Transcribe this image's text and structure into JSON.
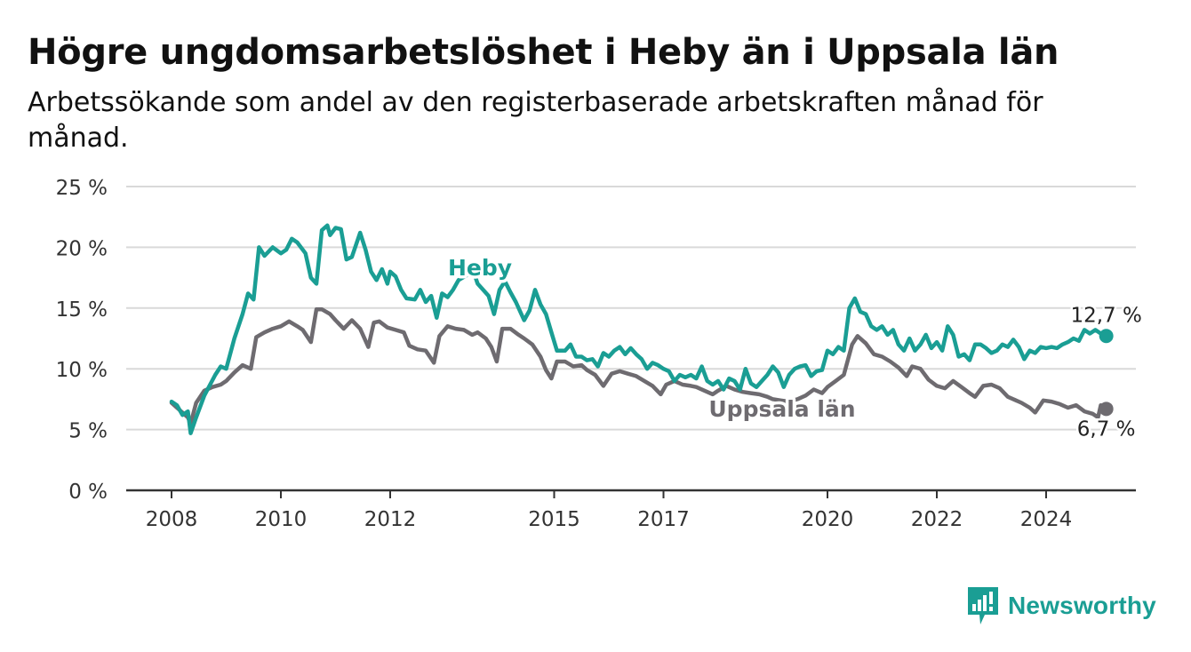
{
  "header": {
    "title": "Högre ungdomsarbetslöshet i Heby än i Uppsala län",
    "subtitle": "Arbetssökande som andel av den registerbaserade arbetskraften månad för månad."
  },
  "brand": {
    "name": "Newsworthy",
    "color": "#1a9e94",
    "icon": "newsworthy-logo-icon"
  },
  "chart_data": {
    "type": "line",
    "title": "Högre ungdomsarbetslöshet i Heby än i Uppsala län",
    "subtitle": "Arbetssökande som andel av den registerbaserade arbetskraften månad för månad.",
    "xlabel": "",
    "ylabel": "",
    "xlim": [
      2008,
      2026
    ],
    "ylim": [
      0,
      25
    ],
    "yticks": [
      0,
      5,
      10,
      15,
      20,
      25
    ],
    "ytick_labels": [
      "0 %",
      "5 %",
      "10 %",
      "15 %",
      "20 %",
      "25 %"
    ],
    "xtick_labels": [
      "2008",
      "2010",
      "2012",
      "2015",
      "2017",
      "2020",
      "2022",
      "2024"
    ],
    "xticks": [
      2008,
      2010,
      2012,
      2015,
      2017,
      2020,
      2022,
      2024
    ],
    "grid": true,
    "legend": "inline labels",
    "series": [
      {
        "name": "Heby",
        "color": "#1a9e94",
        "end_label": "12,7 %",
        "points": [
          [
            2008.0,
            7.3
          ],
          [
            2008.1,
            7.0
          ],
          [
            2008.2,
            6.2
          ],
          [
            2008.3,
            6.5
          ],
          [
            2008.35,
            4.7
          ],
          [
            2008.45,
            6.0
          ],
          [
            2008.6,
            7.8
          ],
          [
            2008.8,
            9.5
          ],
          [
            2008.9,
            10.2
          ],
          [
            2009.0,
            10.0
          ],
          [
            2009.15,
            12.5
          ],
          [
            2009.3,
            14.5
          ],
          [
            2009.4,
            16.2
          ],
          [
            2009.5,
            15.7
          ],
          [
            2009.6,
            20.0
          ],
          [
            2009.7,
            19.3
          ],
          [
            2009.85,
            20.0
          ],
          [
            2010.0,
            19.5
          ],
          [
            2010.1,
            19.8
          ],
          [
            2010.2,
            20.7
          ],
          [
            2010.3,
            20.4
          ],
          [
            2010.45,
            19.5
          ],
          [
            2010.55,
            17.5
          ],
          [
            2010.65,
            17.0
          ],
          [
            2010.75,
            21.4
          ],
          [
            2010.85,
            21.8
          ],
          [
            2010.9,
            21.0
          ],
          [
            2011.0,
            21.6
          ],
          [
            2011.1,
            21.5
          ],
          [
            2011.2,
            19.0
          ],
          [
            2011.3,
            19.2
          ],
          [
            2011.45,
            21.2
          ],
          [
            2011.55,
            19.8
          ],
          [
            2011.65,
            18.0
          ],
          [
            2011.75,
            17.3
          ],
          [
            2011.85,
            18.2
          ],
          [
            2011.95,
            17.0
          ],
          [
            2012.0,
            18.0
          ],
          [
            2012.1,
            17.6
          ],
          [
            2012.2,
            16.5
          ],
          [
            2012.3,
            15.8
          ],
          [
            2012.45,
            15.7
          ],
          [
            2012.55,
            16.5
          ],
          [
            2012.65,
            15.5
          ],
          [
            2012.75,
            16.0
          ],
          [
            2012.85,
            14.2
          ],
          [
            2012.95,
            16.2
          ],
          [
            2013.05,
            15.9
          ],
          [
            2013.15,
            16.5
          ],
          [
            2013.25,
            17.3
          ],
          [
            2013.4,
            17.7
          ],
          [
            2013.5,
            18.3
          ],
          [
            2013.6,
            17.0
          ],
          [
            2013.7,
            16.5
          ],
          [
            2013.8,
            16.0
          ],
          [
            2013.9,
            14.5
          ],
          [
            2014.0,
            16.5
          ],
          [
            2014.1,
            17.2
          ],
          [
            2014.2,
            16.3
          ],
          [
            2014.3,
            15.5
          ],
          [
            2014.45,
            14.0
          ],
          [
            2014.55,
            14.8
          ],
          [
            2014.65,
            16.5
          ],
          [
            2014.75,
            15.3
          ],
          [
            2014.85,
            14.5
          ],
          [
            2014.95,
            13.0
          ],
          [
            2015.05,
            11.5
          ],
          [
            2015.2,
            11.5
          ],
          [
            2015.3,
            12.0
          ],
          [
            2015.4,
            11.0
          ],
          [
            2015.5,
            11.0
          ],
          [
            2015.6,
            10.7
          ],
          [
            2015.7,
            10.8
          ],
          [
            2015.8,
            10.2
          ],
          [
            2015.9,
            11.3
          ],
          [
            2016.0,
            11.0
          ],
          [
            2016.1,
            11.5
          ],
          [
            2016.2,
            11.8
          ],
          [
            2016.3,
            11.2
          ],
          [
            2016.4,
            11.7
          ],
          [
            2016.5,
            11.2
          ],
          [
            2016.6,
            10.8
          ],
          [
            2016.7,
            10.0
          ],
          [
            2016.8,
            10.5
          ],
          [
            2016.9,
            10.3
          ],
          [
            2017.0,
            10.0
          ],
          [
            2017.1,
            9.8
          ],
          [
            2017.2,
            9.0
          ],
          [
            2017.3,
            9.5
          ],
          [
            2017.4,
            9.3
          ],
          [
            2017.5,
            9.5
          ],
          [
            2017.6,
            9.2
          ],
          [
            2017.7,
            10.2
          ],
          [
            2017.8,
            9.0
          ],
          [
            2017.9,
            8.7
          ],
          [
            2018.0,
            9.0
          ],
          [
            2018.1,
            8.3
          ],
          [
            2018.2,
            9.2
          ],
          [
            2018.3,
            9.0
          ],
          [
            2018.4,
            8.3
          ],
          [
            2018.5,
            10.0
          ],
          [
            2018.6,
            8.8
          ],
          [
            2018.7,
            8.5
          ],
          [
            2018.8,
            9.0
          ],
          [
            2018.9,
            9.5
          ],
          [
            2019.0,
            10.2
          ],
          [
            2019.1,
            9.7
          ],
          [
            2019.2,
            8.5
          ],
          [
            2019.3,
            9.5
          ],
          [
            2019.4,
            10.0
          ],
          [
            2019.5,
            10.2
          ],
          [
            2019.6,
            10.3
          ],
          [
            2019.7,
            9.4
          ],
          [
            2019.8,
            9.8
          ],
          [
            2019.9,
            9.9
          ],
          [
            2020.0,
            11.5
          ],
          [
            2020.1,
            11.2
          ],
          [
            2020.2,
            11.8
          ],
          [
            2020.3,
            11.5
          ],
          [
            2020.4,
            15.0
          ],
          [
            2020.5,
            15.8
          ],
          [
            2020.6,
            14.7
          ],
          [
            2020.7,
            14.5
          ],
          [
            2020.8,
            13.5
          ],
          [
            2020.9,
            13.2
          ],
          [
            2021.0,
            13.5
          ],
          [
            2021.1,
            12.8
          ],
          [
            2021.2,
            13.2
          ],
          [
            2021.3,
            12.0
          ],
          [
            2021.4,
            11.5
          ],
          [
            2021.5,
            12.5
          ],
          [
            2021.6,
            11.5
          ],
          [
            2021.7,
            12.0
          ],
          [
            2021.8,
            12.8
          ],
          [
            2021.9,
            11.7
          ],
          [
            2022.0,
            12.2
          ],
          [
            2022.1,
            11.5
          ],
          [
            2022.2,
            13.5
          ],
          [
            2022.3,
            12.8
          ],
          [
            2022.4,
            11.0
          ],
          [
            2022.5,
            11.2
          ],
          [
            2022.6,
            10.7
          ],
          [
            2022.7,
            12.0
          ],
          [
            2022.8,
            12.0
          ],
          [
            2022.9,
            11.7
          ],
          [
            2023.0,
            11.3
          ],
          [
            2023.1,
            11.5
          ],
          [
            2023.2,
            12.0
          ],
          [
            2023.3,
            11.8
          ],
          [
            2023.4,
            12.4
          ],
          [
            2023.5,
            11.8
          ],
          [
            2023.6,
            10.8
          ],
          [
            2023.7,
            11.5
          ],
          [
            2023.8,
            11.3
          ],
          [
            2023.9,
            11.8
          ],
          [
            2024.0,
            11.7
          ],
          [
            2024.1,
            11.8
          ],
          [
            2024.2,
            11.7
          ],
          [
            2024.3,
            12.0
          ],
          [
            2024.4,
            12.2
          ],
          [
            2024.5,
            12.5
          ],
          [
            2024.6,
            12.3
          ],
          [
            2024.7,
            13.2
          ],
          [
            2024.8,
            12.9
          ],
          [
            2024.9,
            13.2
          ],
          [
            2025.0,
            12.9
          ],
          [
            2025.1,
            12.7
          ]
        ]
      },
      {
        "name": "Uppsala län",
        "color": "#6e6b70",
        "end_label": "6,7 %",
        "points": [
          [
            2008.0,
            7.2
          ],
          [
            2008.1,
            6.8
          ],
          [
            2008.2,
            6.4
          ],
          [
            2008.3,
            6.0
          ],
          [
            2008.35,
            5.5
          ],
          [
            2008.45,
            7.2
          ],
          [
            2008.6,
            8.2
          ],
          [
            2008.75,
            8.5
          ],
          [
            2008.9,
            8.7
          ],
          [
            2009.0,
            9.0
          ],
          [
            2009.15,
            9.7
          ],
          [
            2009.3,
            10.3
          ],
          [
            2009.45,
            10.0
          ],
          [
            2009.55,
            12.6
          ],
          [
            2009.7,
            13.0
          ],
          [
            2009.85,
            13.3
          ],
          [
            2010.0,
            13.5
          ],
          [
            2010.15,
            13.9
          ],
          [
            2010.3,
            13.5
          ],
          [
            2010.4,
            13.2
          ],
          [
            2010.55,
            12.2
          ],
          [
            2010.65,
            14.9
          ],
          [
            2010.75,
            14.9
          ],
          [
            2010.9,
            14.5
          ],
          [
            2011.0,
            14.0
          ],
          [
            2011.15,
            13.3
          ],
          [
            2011.3,
            14.0
          ],
          [
            2011.45,
            13.3
          ],
          [
            2011.6,
            11.8
          ],
          [
            2011.7,
            13.8
          ],
          [
            2011.8,
            13.9
          ],
          [
            2011.95,
            13.4
          ],
          [
            2012.1,
            13.2
          ],
          [
            2012.25,
            13.0
          ],
          [
            2012.35,
            11.9
          ],
          [
            2012.5,
            11.6
          ],
          [
            2012.65,
            11.5
          ],
          [
            2012.8,
            10.5
          ],
          [
            2012.9,
            12.7
          ],
          [
            2013.05,
            13.5
          ],
          [
            2013.2,
            13.3
          ],
          [
            2013.35,
            13.2
          ],
          [
            2013.5,
            12.8
          ],
          [
            2013.6,
            13.0
          ],
          [
            2013.75,
            12.5
          ],
          [
            2013.85,
            11.8
          ],
          [
            2013.95,
            10.6
          ],
          [
            2014.05,
            13.3
          ],
          [
            2014.2,
            13.3
          ],
          [
            2014.35,
            12.8
          ],
          [
            2014.45,
            12.5
          ],
          [
            2014.6,
            12.0
          ],
          [
            2014.75,
            11.0
          ],
          [
            2014.85,
            9.9
          ],
          [
            2014.95,
            9.2
          ],
          [
            2015.05,
            10.6
          ],
          [
            2015.2,
            10.6
          ],
          [
            2015.35,
            10.2
          ],
          [
            2015.5,
            10.3
          ],
          [
            2015.6,
            9.9
          ],
          [
            2015.75,
            9.5
          ],
          [
            2015.9,
            8.6
          ],
          [
            2016.05,
            9.6
          ],
          [
            2016.2,
            9.8
          ],
          [
            2016.35,
            9.6
          ],
          [
            2016.5,
            9.4
          ],
          [
            2016.65,
            9.0
          ],
          [
            2016.8,
            8.6
          ],
          [
            2016.95,
            7.9
          ],
          [
            2017.05,
            8.7
          ],
          [
            2017.2,
            9.0
          ],
          [
            2017.35,
            8.7
          ],
          [
            2017.5,
            8.6
          ],
          [
            2017.6,
            8.5
          ],
          [
            2017.75,
            8.2
          ],
          [
            2017.9,
            7.9
          ],
          [
            2018.0,
            8.2
          ],
          [
            2018.15,
            8.6
          ],
          [
            2018.3,
            8.3
          ],
          [
            2018.45,
            8.1
          ],
          [
            2018.6,
            8.0
          ],
          [
            2018.75,
            7.9
          ],
          [
            2018.9,
            7.7
          ],
          [
            2019.0,
            7.5
          ],
          [
            2019.15,
            7.4
          ],
          [
            2019.3,
            7.3
          ],
          [
            2019.45,
            7.5
          ],
          [
            2019.6,
            7.8
          ],
          [
            2019.75,
            8.3
          ],
          [
            2019.9,
            8.0
          ],
          [
            2020.0,
            8.5
          ],
          [
            2020.15,
            9.0
          ],
          [
            2020.3,
            9.5
          ],
          [
            2020.45,
            12.0
          ],
          [
            2020.55,
            12.7
          ],
          [
            2020.7,
            12.1
          ],
          [
            2020.85,
            11.2
          ],
          [
            2021.0,
            11.0
          ],
          [
            2021.15,
            10.6
          ],
          [
            2021.3,
            10.1
          ],
          [
            2021.45,
            9.4
          ],
          [
            2021.55,
            10.2
          ],
          [
            2021.7,
            10.0
          ],
          [
            2021.85,
            9.1
          ],
          [
            2022.0,
            8.6
          ],
          [
            2022.15,
            8.4
          ],
          [
            2022.3,
            9.0
          ],
          [
            2022.45,
            8.5
          ],
          [
            2022.6,
            8.0
          ],
          [
            2022.7,
            7.7
          ],
          [
            2022.85,
            8.6
          ],
          [
            2023.0,
            8.7
          ],
          [
            2023.15,
            8.4
          ],
          [
            2023.3,
            7.7
          ],
          [
            2023.4,
            7.5
          ],
          [
            2023.55,
            7.2
          ],
          [
            2023.7,
            6.8
          ],
          [
            2023.8,
            6.4
          ],
          [
            2023.95,
            7.4
          ],
          [
            2024.1,
            7.3
          ],
          [
            2024.25,
            7.1
          ],
          [
            2024.4,
            6.8
          ],
          [
            2024.55,
            7.0
          ],
          [
            2024.7,
            6.5
          ],
          [
            2024.85,
            6.3
          ],
          [
            2024.95,
            6.0
          ],
          [
            2025.0,
            7.0
          ],
          [
            2025.1,
            6.7
          ]
        ]
      }
    ]
  }
}
